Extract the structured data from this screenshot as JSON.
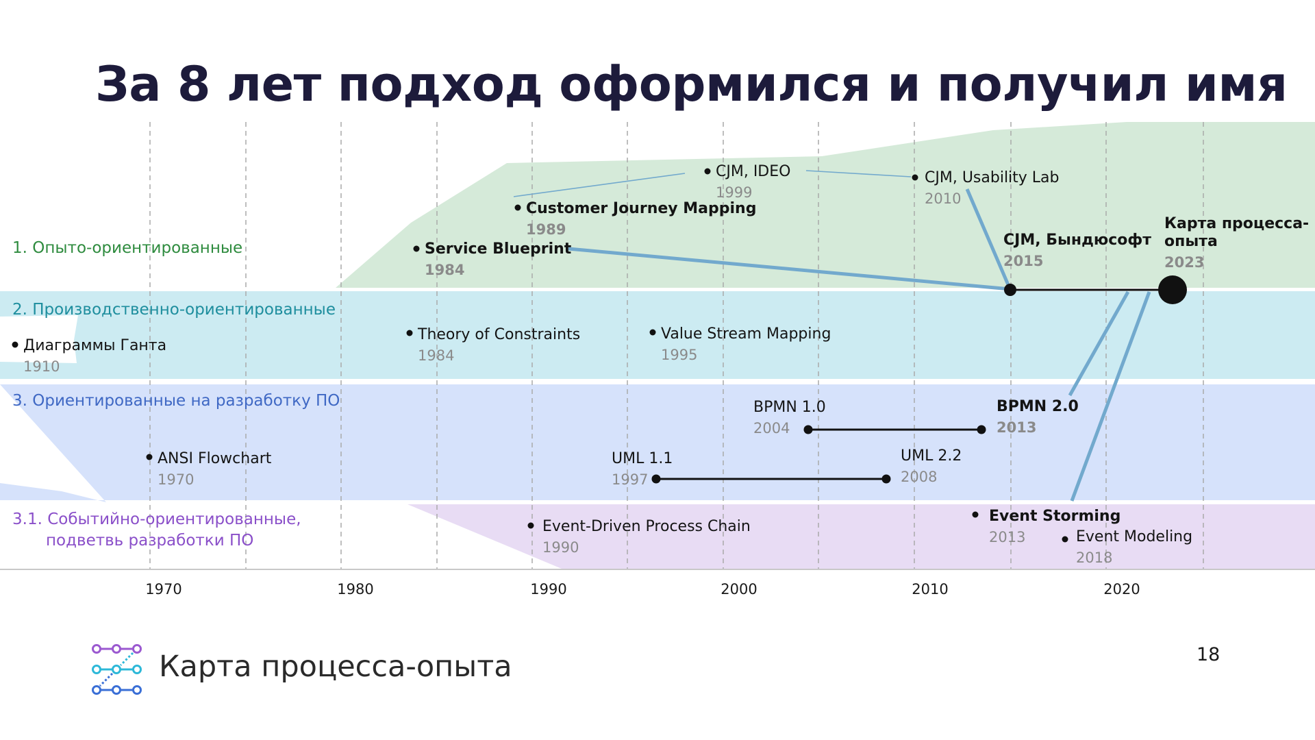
{
  "title": "За 8 лет подход оформился и получил имя",
  "lanes": [
    {
      "id": "l1",
      "label": "1. Опыто-ориентированные",
      "color": "#2e8b3e"
    },
    {
      "id": "l2",
      "label": "2. Производственно-ориентированные",
      "color": "#1e8e9e"
    },
    {
      "id": "l3",
      "label": "3. Ориентированные на разработку ПО",
      "color": "#3f68c4"
    },
    {
      "id": "l4",
      "label": "3.1. Событийно-ориентированные,",
      "label2": "подветвь разработки ПО",
      "color": "#8a4fc9"
    }
  ],
  "events": [
    {
      "id": "cjm-ideo",
      "label": "CJM, IDEO",
      "year": "1999",
      "bold": false
    },
    {
      "id": "cjm-usability-lab",
      "label": "CJM, Usability Lab",
      "year": "2010",
      "bold": false
    },
    {
      "id": "customer-journey-mapping",
      "label": "Customer Journey Mapping",
      "year": "1989",
      "bold": true
    },
    {
      "id": "service-blueprint",
      "label": "Service Blueprint",
      "year": "1984",
      "bold": true
    },
    {
      "id": "cjm-byndyusoft",
      "label": "CJM, Бындюсофт",
      "year": "2015",
      "bold": true
    },
    {
      "id": "process-experience-map",
      "label": "Карта процесса-",
      "label2": "опыта",
      "year": "2023",
      "bold": true
    },
    {
      "id": "gantt",
      "label": "Диаграммы Ганта",
      "year": "1910",
      "bold": false
    },
    {
      "id": "toc",
      "label": "Theory of Constraints",
      "year": "1984",
      "bold": false
    },
    {
      "id": "vsm",
      "label": "Value Stream Mapping",
      "year": "1995",
      "bold": false
    },
    {
      "id": "bpmn1",
      "label": "BPMN 1.0",
      "year": "2004",
      "bold": false
    },
    {
      "id": "bpmn2",
      "label": "BPMN 2.0",
      "year": "2013",
      "bold": true
    },
    {
      "id": "ansi",
      "label": "ANSI Flowchart",
      "year": "1970",
      "bold": false
    },
    {
      "id": "uml11",
      "label": "UML 1.1",
      "year": "1997",
      "bold": false
    },
    {
      "id": "uml22",
      "label": "UML 2.2",
      "year": "2008",
      "bold": false
    },
    {
      "id": "epc",
      "label": "Event-Driven Process Chain",
      "year": "1990",
      "bold": false
    },
    {
      "id": "event-storming",
      "label": "Event Storming",
      "year": "2013",
      "bold": true
    },
    {
      "id": "event-modeling",
      "label": "Event Modeling",
      "year": "2018",
      "bold": false
    }
  ],
  "axis": {
    "ticks": [
      "1970",
      "1980",
      "1990",
      "2000",
      "2010",
      "2020"
    ]
  },
  "footer": {
    "brand": "Карта процесса-опыта",
    "page": "18"
  },
  "colors": {
    "lane1_bg": "#d5ead9",
    "lane2_bg": "#ccebf2",
    "lane3_bg": "#d6e2fb",
    "lane4_bg": "#e8dcf4",
    "connector": "#72a9cd",
    "title": "#1d1b3b"
  }
}
